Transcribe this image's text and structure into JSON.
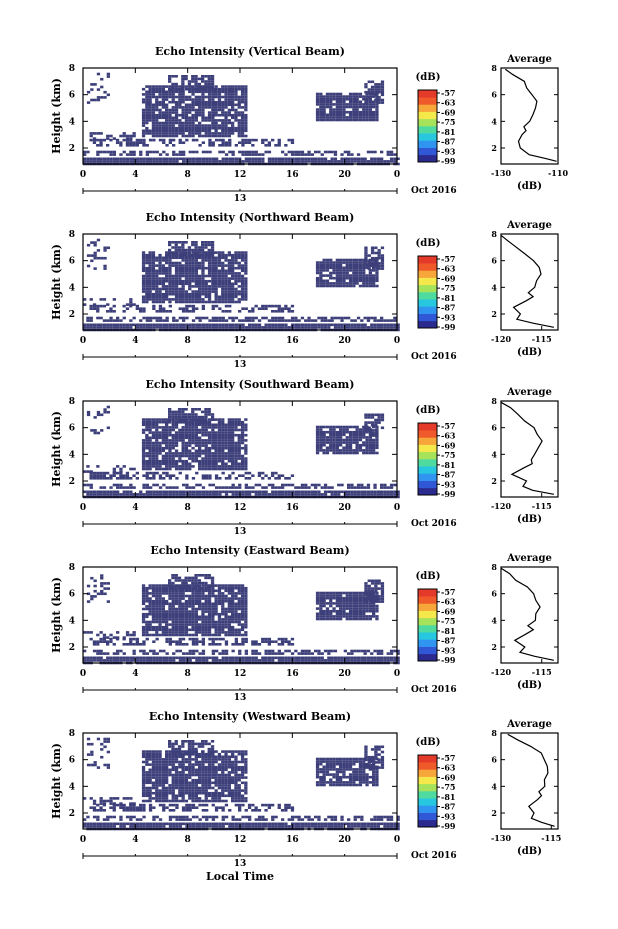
{
  "chart_data": [
    {
      "type": "heatmap",
      "title": "Echo Intensity (Vertical Beam)",
      "ylabel": "Height (km)",
      "yticks": [
        "2",
        "4",
        "6",
        "8"
      ],
      "ylim": [
        0.8,
        8
      ],
      "xticks": [
        "0",
        "4",
        "8",
        "12",
        "16",
        "20",
        "0"
      ],
      "xlim": [
        0,
        24
      ],
      "date_label": "13",
      "month_label": "Oct 2016",
      "colorbar": {
        "unit": "(dB)",
        "ticks": [
          "-57",
          "-63",
          "-69",
          "-75",
          "-81",
          "-87",
          "-93",
          "-99"
        ],
        "range": [
          -99,
          -57
        ]
      },
      "average": {
        "title": "Average",
        "xlabel": "(dB)",
        "xticks": [
          "-130",
          "-110"
        ],
        "xlim": [
          -130,
          -110
        ],
        "ylim": [
          0.8,
          8
        ],
        "yticks": [
          "2",
          "4",
          "6",
          "8"
        ],
        "height": [
          1.0,
          1.2,
          1.5,
          2.0,
          2.5,
          3.0,
          3.3,
          3.6,
          4.0,
          4.5,
          5.0,
          5.5,
          6.0,
          6.5,
          7.0,
          7.5,
          7.9
        ],
        "value": [
          -110.5,
          -114,
          -120,
          -123,
          -124,
          -122.5,
          -121,
          -122,
          -120,
          -119,
          -118,
          -117.5,
          -119,
          -121,
          -122,
          -126,
          -128.5
        ]
      }
    },
    {
      "type": "heatmap",
      "title": "Echo Intensity (Northward Beam)",
      "ylabel": "Height (km)",
      "yticks": [
        "2",
        "4",
        "6",
        "8"
      ],
      "ylim": [
        0.8,
        8
      ],
      "xticks": [
        "0",
        "4",
        "8",
        "12",
        "16",
        "20",
        "0"
      ],
      "xlim": [
        0,
        24
      ],
      "date_label": "13",
      "month_label": "Oct 2016",
      "colorbar": {
        "unit": "(dB)",
        "ticks": [
          "-57",
          "-63",
          "-69",
          "-75",
          "-81",
          "-87",
          "-93",
          "-99"
        ],
        "range": [
          -99,
          -57
        ]
      },
      "average": {
        "title": "Average",
        "xlabel": "(dB)",
        "xticks": [
          "-120",
          "-115"
        ],
        "xlim": [
          -120,
          -113
        ],
        "ylim": [
          0.8,
          8
        ],
        "yticks": [
          "2",
          "4",
          "6",
          "8"
        ],
        "height": [
          1.0,
          1.3,
          1.6,
          2.0,
          2.5,
          3.0,
          3.3,
          3.6,
          4.0,
          4.5,
          5.0,
          5.5,
          6.0,
          6.5,
          7.0,
          7.5,
          7.9
        ],
        "value": [
          -113.5,
          -116,
          -118,
          -117.5,
          -118.5,
          -117,
          -116,
          -116.5,
          -116,
          -115.5,
          -115,
          -115.5,
          -116,
          -117,
          -118,
          -119,
          -120
        ]
      }
    },
    {
      "type": "heatmap",
      "title": "Echo Intensity (Southward Beam)",
      "ylabel": "Height (km)",
      "yticks": [
        "2",
        "4",
        "6",
        "8"
      ],
      "ylim": [
        0.8,
        8
      ],
      "xticks": [
        "0",
        "4",
        "8",
        "12",
        "16",
        "20",
        "0"
      ],
      "xlim": [
        0,
        24
      ],
      "date_label": "13",
      "month_label": "Oct 2016",
      "colorbar": {
        "unit": "(dB)",
        "ticks": [
          "-57",
          "-63",
          "-69",
          "-75",
          "-81",
          "-87",
          "-93",
          "-99"
        ],
        "range": [
          -99,
          -57
        ]
      },
      "average": {
        "title": "Average",
        "xlabel": "(dB)",
        "xticks": [
          "-120",
          "-115"
        ],
        "xlim": [
          -120,
          -113
        ],
        "ylim": [
          0.8,
          8
        ],
        "yticks": [
          "2",
          "4",
          "6",
          "8"
        ],
        "height": [
          1.0,
          1.3,
          1.6,
          2.0,
          2.5,
          3.0,
          3.3,
          3.6,
          4.0,
          4.5,
          5.0,
          5.5,
          6.0,
          6.5,
          7.0,
          7.5,
          7.9
        ],
        "value": [
          -113.5,
          -116,
          -117.5,
          -117,
          -118.5,
          -117,
          -116,
          -116.5,
          -116,
          -115.5,
          -115,
          -115.5,
          -116,
          -117,
          -118,
          -119,
          -120
        ]
      }
    },
    {
      "type": "heatmap",
      "title": "Echo Intensity (Eastward Beam)",
      "ylabel": "Height (km)",
      "yticks": [
        "2",
        "4",
        "6",
        "8"
      ],
      "ylim": [
        0.8,
        8
      ],
      "xticks": [
        "0",
        "4",
        "8",
        "12",
        "16",
        "20",
        "0"
      ],
      "xlim": [
        0,
        24
      ],
      "date_label": "13",
      "month_label": "Oct 2016",
      "colorbar": {
        "unit": "(dB)",
        "ticks": [
          "-57",
          "-63",
          "-69",
          "-75",
          "-81",
          "-87",
          "-93",
          "-99"
        ],
        "range": [
          -99,
          -57
        ]
      },
      "average": {
        "title": "Average",
        "xlabel": "(dB)",
        "xticks": [
          "-120",
          "-115"
        ],
        "xlim": [
          -120,
          -113
        ],
        "ylim": [
          0.8,
          8
        ],
        "yticks": [
          "2",
          "4",
          "6",
          "8"
        ],
        "height": [
          1.0,
          1.3,
          1.6,
          2.0,
          2.5,
          3.0,
          3.3,
          3.6,
          4.0,
          4.5,
          5.0,
          5.5,
          6.0,
          6.5,
          7.0,
          7.5,
          7.9
        ],
        "value": [
          -113.5,
          -116,
          -117.5,
          -117,
          -118.5,
          -117,
          -116,
          -116.5,
          -116,
          -115.5,
          -115,
          -115.5,
          -116,
          -117,
          -118,
          -119,
          -120
        ]
      }
    },
    {
      "type": "heatmap",
      "title": "Echo Intensity (Westward Beam)",
      "ylabel": "Height (km)",
      "yticks": [
        "2",
        "4",
        "6",
        "8"
      ],
      "ylim": [
        0.8,
        8
      ],
      "xticks": [
        "0",
        "4",
        "8",
        "12",
        "16",
        "20",
        "0"
      ],
      "xlim": [
        0,
        24
      ],
      "date_label": "13",
      "month_label": "Oct 2016",
      "xlabel": "Local Time",
      "colorbar": {
        "unit": "(dB)",
        "ticks": [
          "-57",
          "-63",
          "-69",
          "-75",
          "-81",
          "-87",
          "-93",
          "-99"
        ],
        "range": [
          -99,
          -57
        ]
      },
      "average": {
        "title": "Average",
        "xlabel": "(dB)",
        "xticks": [
          "-130",
          "-115"
        ],
        "xlim": [
          -130,
          -113
        ],
        "ylim": [
          0.8,
          8
        ],
        "yticks": [
          "2",
          "4",
          "6",
          "8"
        ],
        "height": [
          1.0,
          1.3,
          1.6,
          2.0,
          2.5,
          3.0,
          3.3,
          3.6,
          4.0,
          4.5,
          5.0,
          5.5,
          6.0,
          6.5,
          7.0,
          7.5,
          7.9
        ],
        "value": [
          -114,
          -118,
          -121,
          -120,
          -121.5,
          -119,
          -118,
          -118.5,
          -117,
          -117,
          -116,
          -116,
          -117,
          -118,
          -121,
          -125,
          -128
        ]
      }
    }
  ],
  "colors": {
    "echo": "#3d3f7a",
    "colorbar": [
      "#2b2b8f",
      "#2f57d6",
      "#2f95f0",
      "#27c7e0",
      "#4fdba0",
      "#a6e25a",
      "#f4e84a",
      "#f7a63a",
      "#f05a2a",
      "#e33a2a"
    ]
  }
}
